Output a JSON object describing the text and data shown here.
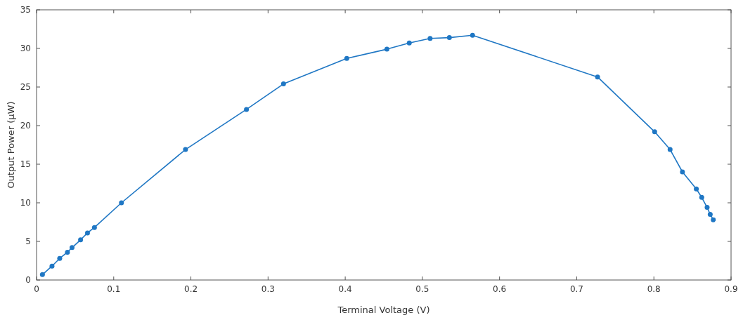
{
  "chart_data": {
    "type": "line",
    "xlabel": "Terminal Voltage (V)",
    "ylabel": "Output Power (µW)",
    "xlim": [
      0,
      0.9
    ],
    "xticks": [
      0,
      0.1,
      0.2,
      0.3,
      0.4,
      0.5,
      0.6,
      0.7,
      0.8,
      0.9
    ],
    "ylim": [
      0,
      35
    ],
    "yticks": [
      0,
      5,
      10,
      15,
      20,
      25,
      30,
      35
    ],
    "grid": false,
    "marker": "circle",
    "line_style": "solid",
    "series": [
      {
        "color": "#1f77c4",
        "x": [
          0.0076,
          0.02,
          0.03,
          0.04,
          0.046,
          0.057,
          0.066,
          0.075,
          0.11,
          0.193,
          0.272,
          0.32,
          0.402,
          0.454,
          0.483,
          0.51,
          0.535,
          0.565,
          0.727,
          0.801,
          0.821,
          0.837,
          0.855,
          0.862,
          0.869,
          0.873,
          0.877
        ],
        "values": [
          0.7,
          1.8,
          2.8,
          3.6,
          4.2,
          5.2,
          6.1,
          6.8,
          10.0,
          16.9,
          22.1,
          25.4,
          28.7,
          29.9,
          30.7,
          31.3,
          31.4,
          31.7,
          26.3,
          19.2,
          16.9,
          14.0,
          11.8,
          10.7,
          9.4,
          8.5,
          7.8
        ]
      }
    ]
  }
}
